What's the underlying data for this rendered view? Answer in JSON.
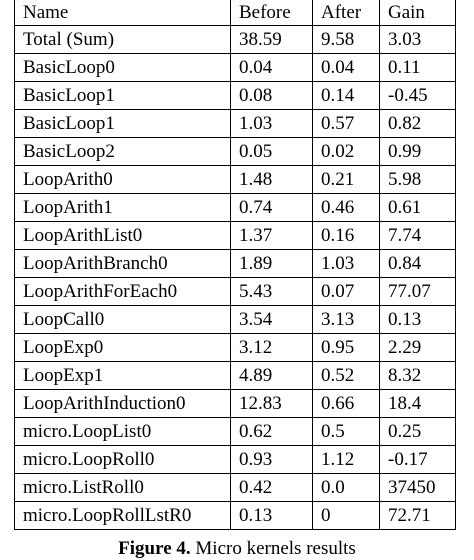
{
  "table": {
    "columns": [
      "Name",
      "Before",
      "After",
      "Gain"
    ],
    "rows": [
      [
        "Total (Sum)",
        "38.59",
        "9.58",
        "3.03"
      ],
      [
        "BasicLoop0",
        "0.04",
        "0.04",
        "0.11"
      ],
      [
        "BasicLoop1",
        "0.08",
        "0.14",
        "-0.45"
      ],
      [
        "BasicLoop1",
        "1.03",
        "0.57",
        "0.82"
      ],
      [
        "BasicLoop2",
        "0.05",
        "0.02",
        "0.99"
      ],
      [
        "LoopArith0",
        "1.48",
        "0.21",
        "5.98"
      ],
      [
        "LoopArith1",
        "0.74",
        "0.46",
        "0.61"
      ],
      [
        "LoopArithList0",
        "1.37",
        "0.16",
        "7.74"
      ],
      [
        "LoopArithBranch0",
        "1.89",
        "1.03",
        "0.84"
      ],
      [
        "LoopArithForEach0",
        "5.43",
        "0.07",
        "77.07"
      ],
      [
        "LoopCall0",
        "3.54",
        "3.13",
        "0.13"
      ],
      [
        "LoopExp0",
        "3.12",
        "0.95",
        "2.29"
      ],
      [
        "LoopExp1",
        "4.89",
        "0.52",
        "8.32"
      ],
      [
        "LoopArithInduction0",
        "12.83",
        "0.66",
        "18.4"
      ],
      [
        "micro.LoopList0",
        "0.62",
        "0.5",
        "0.25"
      ],
      [
        "micro.LoopRoll0",
        "0.93",
        "1.12",
        "-0.17"
      ],
      [
        "micro.ListRoll0",
        "0.42",
        "0.0",
        "37450"
      ],
      [
        "micro.LoopRollLstR0",
        "0.13",
        "0",
        "72.71"
      ]
    ]
  },
  "caption": {
    "label": "Figure 4.",
    "text": "Micro kernels results"
  }
}
